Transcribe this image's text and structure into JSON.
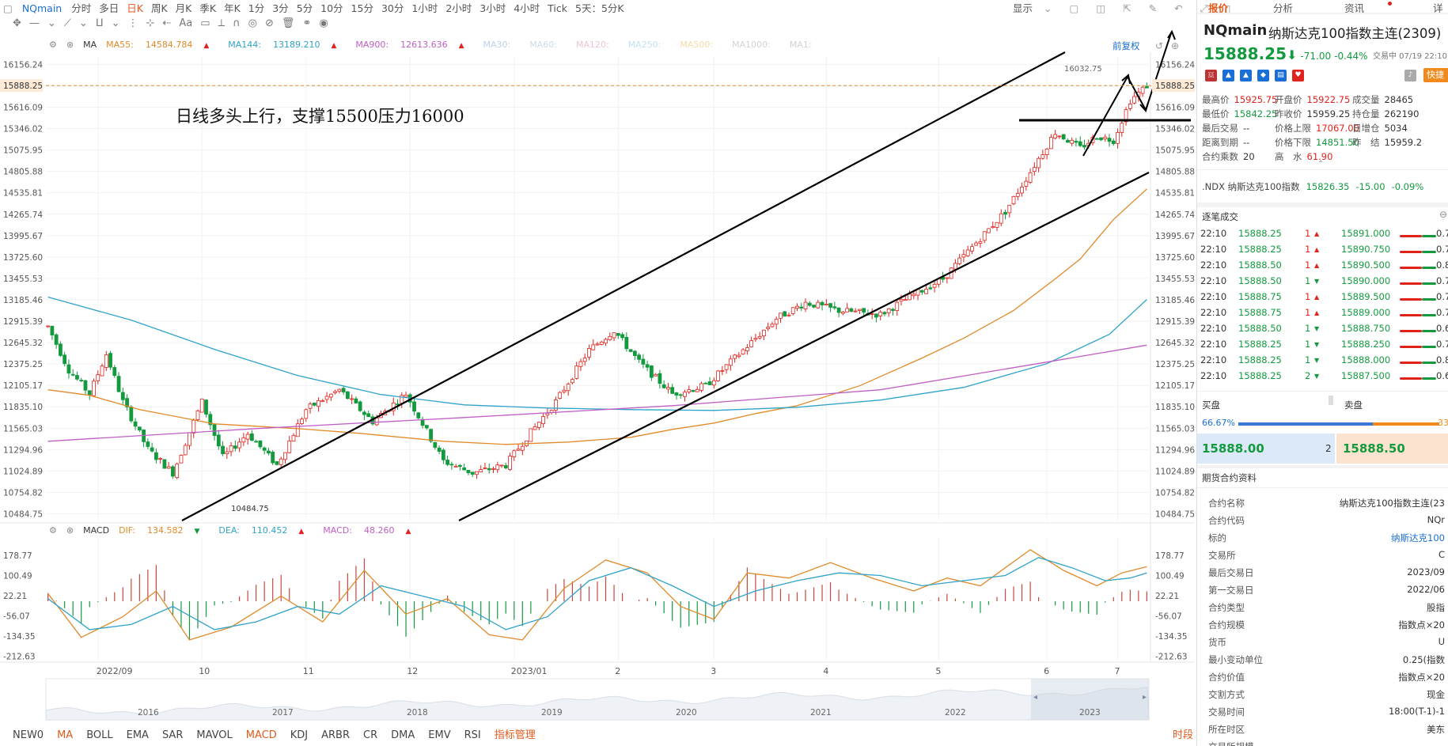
{
  "toolbar": {
    "symbol": "NQmain",
    "periods": [
      "分时",
      "多日",
      "日K",
      "周K",
      "月K",
      "季K",
      "年K",
      "1分",
      "3分",
      "5分",
      "10分",
      "15分",
      "30分",
      "1小时",
      "2小时",
      "3小时",
      "4小时",
      "Tick",
      "5天：5分K"
    ],
    "active_period": "日K",
    "display_label": "显示"
  },
  "drawtools": {
    "text_tool": "Aa"
  },
  "ma_legend": {
    "name": "MA",
    "items": [
      {
        "label": "MA55:",
        "value": "14584.784",
        "color": "#e08a2a"
      },
      {
        "label": "MA144:",
        "value": "13189.210",
        "color": "#2fa3c9"
      },
      {
        "label": "MA900:",
        "value": "12613.636",
        "color": "#c05ec4"
      },
      {
        "label": "MA30:",
        "value": "",
        "color": "#b9d2e8"
      },
      {
        "label": "MA60:",
        "value": "",
        "color": "#c8dde3"
      },
      {
        "label": "MA120:",
        "value": "",
        "color": "#efc4cf"
      },
      {
        "label": "MA250:",
        "value": "",
        "color": "#bfe4ee"
      },
      {
        "label": "MA500:",
        "value": "",
        "color": "#f3dca8"
      },
      {
        "label": "MA1000:",
        "value": "",
        "color": "#d2d2d2"
      },
      {
        "label": "MA1:",
        "value": "",
        "color": "#d2d2d2"
      }
    ],
    "adjust_label": "前复权"
  },
  "macd_legend": {
    "name": "MACD",
    "items": [
      {
        "label": "DIF:",
        "value": "134.582",
        "color": "#e08a2a"
      },
      {
        "label": "DEA:",
        "value": "110.452",
        "color": "#2fa3c9"
      },
      {
        "label": "MACD:",
        "value": "48.260",
        "color": "#c05ec4"
      }
    ]
  },
  "annotation_text": "日线多头上行，支撑15500压力16000",
  "chart_data": {
    "type": "candlestick",
    "price_axis": [
      "16156.24",
      "15888.25",
      "15616.09",
      "15346.02",
      "15075.95",
      "14805.88",
      "14535.81",
      "14265.74",
      "13995.67",
      "13725.60",
      "13455.53",
      "13185.46",
      "12915.39",
      "12645.32",
      "12375.25",
      "12105.17",
      "11835.10",
      "11565.03",
      "11294.96",
      "11024.89",
      "10754.82",
      "10484.75"
    ],
    "price_range": [
      10400,
      16250
    ],
    "current_price": "15888.25",
    "high_label": "16032.75",
    "low_label": "10484.75",
    "macd_axis": [
      "178.77",
      "100.49",
      "22.21",
      "-56.07",
      "-134.35",
      "-212.63"
    ],
    "macd_range": [
      -230,
      215
    ],
    "time_axis": [
      "2022/09",
      "10",
      "11",
      "12",
      "2023/01",
      "2",
      "3",
      "4",
      "5",
      "6",
      "7"
    ],
    "overview_years": [
      "2016",
      "2017",
      "2018",
      "2019",
      "2020",
      "2021",
      "2022",
      "2023"
    ],
    "ma55": [
      [
        0,
        12050
      ],
      [
        10,
        11980
      ],
      [
        22,
        11800
      ],
      [
        40,
        11620
      ],
      [
        60,
        11560
      ],
      [
        75,
        11500
      ],
      [
        95,
        11400
      ],
      [
        110,
        11360
      ],
      [
        125,
        11390
      ],
      [
        140,
        11450
      ],
      [
        150,
        11550
      ],
      [
        160,
        11630
      ],
      [
        170,
        11750
      ],
      [
        180,
        11850
      ],
      [
        195,
        12100
      ],
      [
        210,
        12450
      ],
      [
        220,
        12700
      ],
      [
        232,
        13050
      ],
      [
        242,
        13450
      ],
      [
        248,
        13700
      ],
      [
        256,
        14200
      ],
      [
        264,
        14584
      ]
    ],
    "ma144": [
      [
        0,
        13220
      ],
      [
        20,
        12930
      ],
      [
        40,
        12560
      ],
      [
        60,
        12230
      ],
      [
        80,
        11990
      ],
      [
        100,
        11860
      ],
      [
        120,
        11820
      ],
      [
        140,
        11800
      ],
      [
        160,
        11790
      ],
      [
        180,
        11830
      ],
      [
        200,
        11920
      ],
      [
        220,
        12080
      ],
      [
        240,
        12380
      ],
      [
        255,
        12750
      ],
      [
        264,
        13189
      ]
    ],
    "ma900": [
      [
        0,
        11400
      ],
      [
        50,
        11560
      ],
      [
        100,
        11700
      ],
      [
        150,
        11850
      ],
      [
        200,
        12050
      ],
      [
        240,
        12400
      ],
      [
        264,
        12613
      ]
    ],
    "dif": [
      [
        0,
        30
      ],
      [
        8,
        -140
      ],
      [
        18,
        -60
      ],
      [
        26,
        40
      ],
      [
        34,
        -150
      ],
      [
        44,
        -100
      ],
      [
        56,
        20
      ],
      [
        66,
        -80
      ],
      [
        76,
        120
      ],
      [
        86,
        -50
      ],
      [
        96,
        10
      ],
      [
        106,
        -130
      ],
      [
        114,
        -150
      ],
      [
        124,
        50
      ],
      [
        134,
        160
      ],
      [
        144,
        110
      ],
      [
        152,
        -20
      ],
      [
        160,
        -70
      ],
      [
        168,
        110
      ],
      [
        178,
        90
      ],
      [
        188,
        150
      ],
      [
        198,
        90
      ],
      [
        208,
        40
      ],
      [
        216,
        90
      ],
      [
        224,
        60
      ],
      [
        230,
        130
      ],
      [
        236,
        200
      ],
      [
        244,
        120
      ],
      [
        252,
        60
      ],
      [
        258,
        110
      ],
      [
        264,
        134
      ]
    ],
    "dea": [
      [
        0,
        10
      ],
      [
        10,
        -110
      ],
      [
        20,
        -90
      ],
      [
        30,
        -20
      ],
      [
        40,
        -110
      ],
      [
        50,
        -80
      ],
      [
        60,
        -20
      ],
      [
        70,
        -50
      ],
      [
        80,
        60
      ],
      [
        90,
        20
      ],
      [
        100,
        -20
      ],
      [
        110,
        -110
      ],
      [
        120,
        -60
      ],
      [
        130,
        80
      ],
      [
        140,
        130
      ],
      [
        150,
        60
      ],
      [
        160,
        -20
      ],
      [
        170,
        40
      ],
      [
        180,
        80
      ],
      [
        190,
        110
      ],
      [
        200,
        100
      ],
      [
        210,
        60
      ],
      [
        220,
        80
      ],
      [
        230,
        100
      ],
      [
        238,
        170
      ],
      [
        246,
        130
      ],
      [
        254,
        80
      ],
      [
        260,
        90
      ],
      [
        264,
        110
      ]
    ]
  },
  "quote_panel": {
    "tabs": [
      "报价",
      "分析",
      "资讯",
      "详"
    ],
    "symbol": "NQmain",
    "name": "纳斯达克100指数主连(2309)",
    "price": "15888.25",
    "arrow": "⬇",
    "change": "-71.00",
    "change_pct": "-0.44%",
    "status": "交易中 07/19 22:10",
    "quick_btn": "快捷",
    "fields": [
      {
        "k": "最高价",
        "v": "15925.75",
        "c": "red"
      },
      {
        "k": "开盘价",
        "v": "15922.75",
        "c": "red"
      },
      {
        "k": "成交量",
        "v": "28465",
        "c": ""
      },
      {
        "k": "最低价",
        "v": "15842.25",
        "c": "green"
      },
      {
        "k": "昨收价",
        "v": "15959.25",
        "c": ""
      },
      {
        "k": "持仓量",
        "v": "262190",
        "c": ""
      },
      {
        "k": "最后交易",
        "v": "--",
        "c": ""
      },
      {
        "k": "价格上限",
        "v": "17067.00",
        "c": "red"
      },
      {
        "k": "日增仓",
        "v": "5034",
        "c": ""
      },
      {
        "k": "距离到期",
        "v": "--",
        "c": ""
      },
      {
        "k": "价格下限",
        "v": "14851.50",
        "c": "green"
      },
      {
        "k": "昨　结",
        "v": "15959.2",
        "c": ""
      },
      {
        "k": "合约乘数",
        "v": "20",
        "c": ""
      },
      {
        "k": "高　水",
        "v": "61.90",
        "c": "red"
      }
    ],
    "index_line": {
      "name": ".NDX 纳斯达克100指数",
      "price": "15826.35",
      "change": "-15.00",
      "pct": "-0.09%"
    },
    "trades_title": "逐笔成交",
    "trades": [
      {
        "t": "22:10",
        "p": "15888.25",
        "v": "1",
        "d": "up"
      },
      {
        "t": "22:10",
        "p": "15888.25",
        "v": "1",
        "d": "up"
      },
      {
        "t": "22:10",
        "p": "15888.50",
        "v": "1",
        "d": "up"
      },
      {
        "t": "22:10",
        "p": "15888.50",
        "v": "1",
        "d": "down"
      },
      {
        "t": "22:10",
        "p": "15888.75",
        "v": "1",
        "d": "up"
      },
      {
        "t": "22:10",
        "p": "15888.75",
        "v": "1",
        "d": "up"
      },
      {
        "t": "22:10",
        "p": "15888.50",
        "v": "1",
        "d": "down"
      },
      {
        "t": "22:10",
        "p": "15888.25",
        "v": "1",
        "d": "down"
      },
      {
        "t": "22:10",
        "p": "15888.25",
        "v": "1",
        "d": "down"
      },
      {
        "t": "22:10",
        "p": "15888.25",
        "v": "2",
        "d": "down"
      }
    ],
    "depth": [
      {
        "p": "15891.000",
        "v": "0.7"
      },
      {
        "p": "15890.750",
        "v": "0.7"
      },
      {
        "p": "15890.500",
        "v": "0.8"
      },
      {
        "p": "15890.000",
        "v": "0.7"
      },
      {
        "p": "15889.500",
        "v": "0.7"
      },
      {
        "p": "15889.000",
        "v": "0.7"
      },
      {
        "p": "15888.750",
        "v": "0.6"
      },
      {
        "p": "15888.250",
        "v": "0.7"
      },
      {
        "p": "15888.000",
        "v": "0.8"
      },
      {
        "p": "15887.500",
        "v": "0.6"
      }
    ],
    "buy_label": "买盘",
    "sell_label": "卖盘",
    "buy_pct": "66.67%",
    "sell_pct": "33",
    "bid": "15888.00",
    "bid_vol": "2",
    "ask": "15888.50",
    "info_title": "期货合约资料",
    "info": [
      {
        "k": "合约名称",
        "v": "纳斯达克100指数主连(23"
      },
      {
        "k": "合约代码",
        "v": "NQr"
      },
      {
        "k": "标的",
        "v": "纳斯达克100"
      },
      {
        "k": "交易所",
        "v": "C"
      },
      {
        "k": "最后交易日",
        "v": "2023/09"
      },
      {
        "k": "第一交易日",
        "v": "2022/06"
      },
      {
        "k": "合约类型",
        "v": "股指"
      },
      {
        "k": "合约规模",
        "v": "指数点×20"
      },
      {
        "k": "货币",
        "v": "U"
      },
      {
        "k": "最小变动单位",
        "v": "0.25(指数"
      },
      {
        "k": "合约价值",
        "v": "指数点×20"
      },
      {
        "k": "交割方式",
        "v": "现金"
      },
      {
        "k": "交易时间",
        "v": "18:00(T-1)-1"
      },
      {
        "k": "所在时区",
        "v": "美东"
      },
      {
        "k": "交易所规模",
        "v": ""
      }
    ]
  },
  "bottom_indicators": [
    "NEW0",
    "MA",
    "BOLL",
    "EMA",
    "SAR",
    "MAVOL",
    "MACD",
    "KDJ",
    "ARBR",
    "CR",
    "DMA",
    "EMV",
    "RSI",
    "指标管理"
  ],
  "active_indicators": [
    "MA",
    "MACD",
    "指标管理"
  ],
  "time_range_label": "时段"
}
